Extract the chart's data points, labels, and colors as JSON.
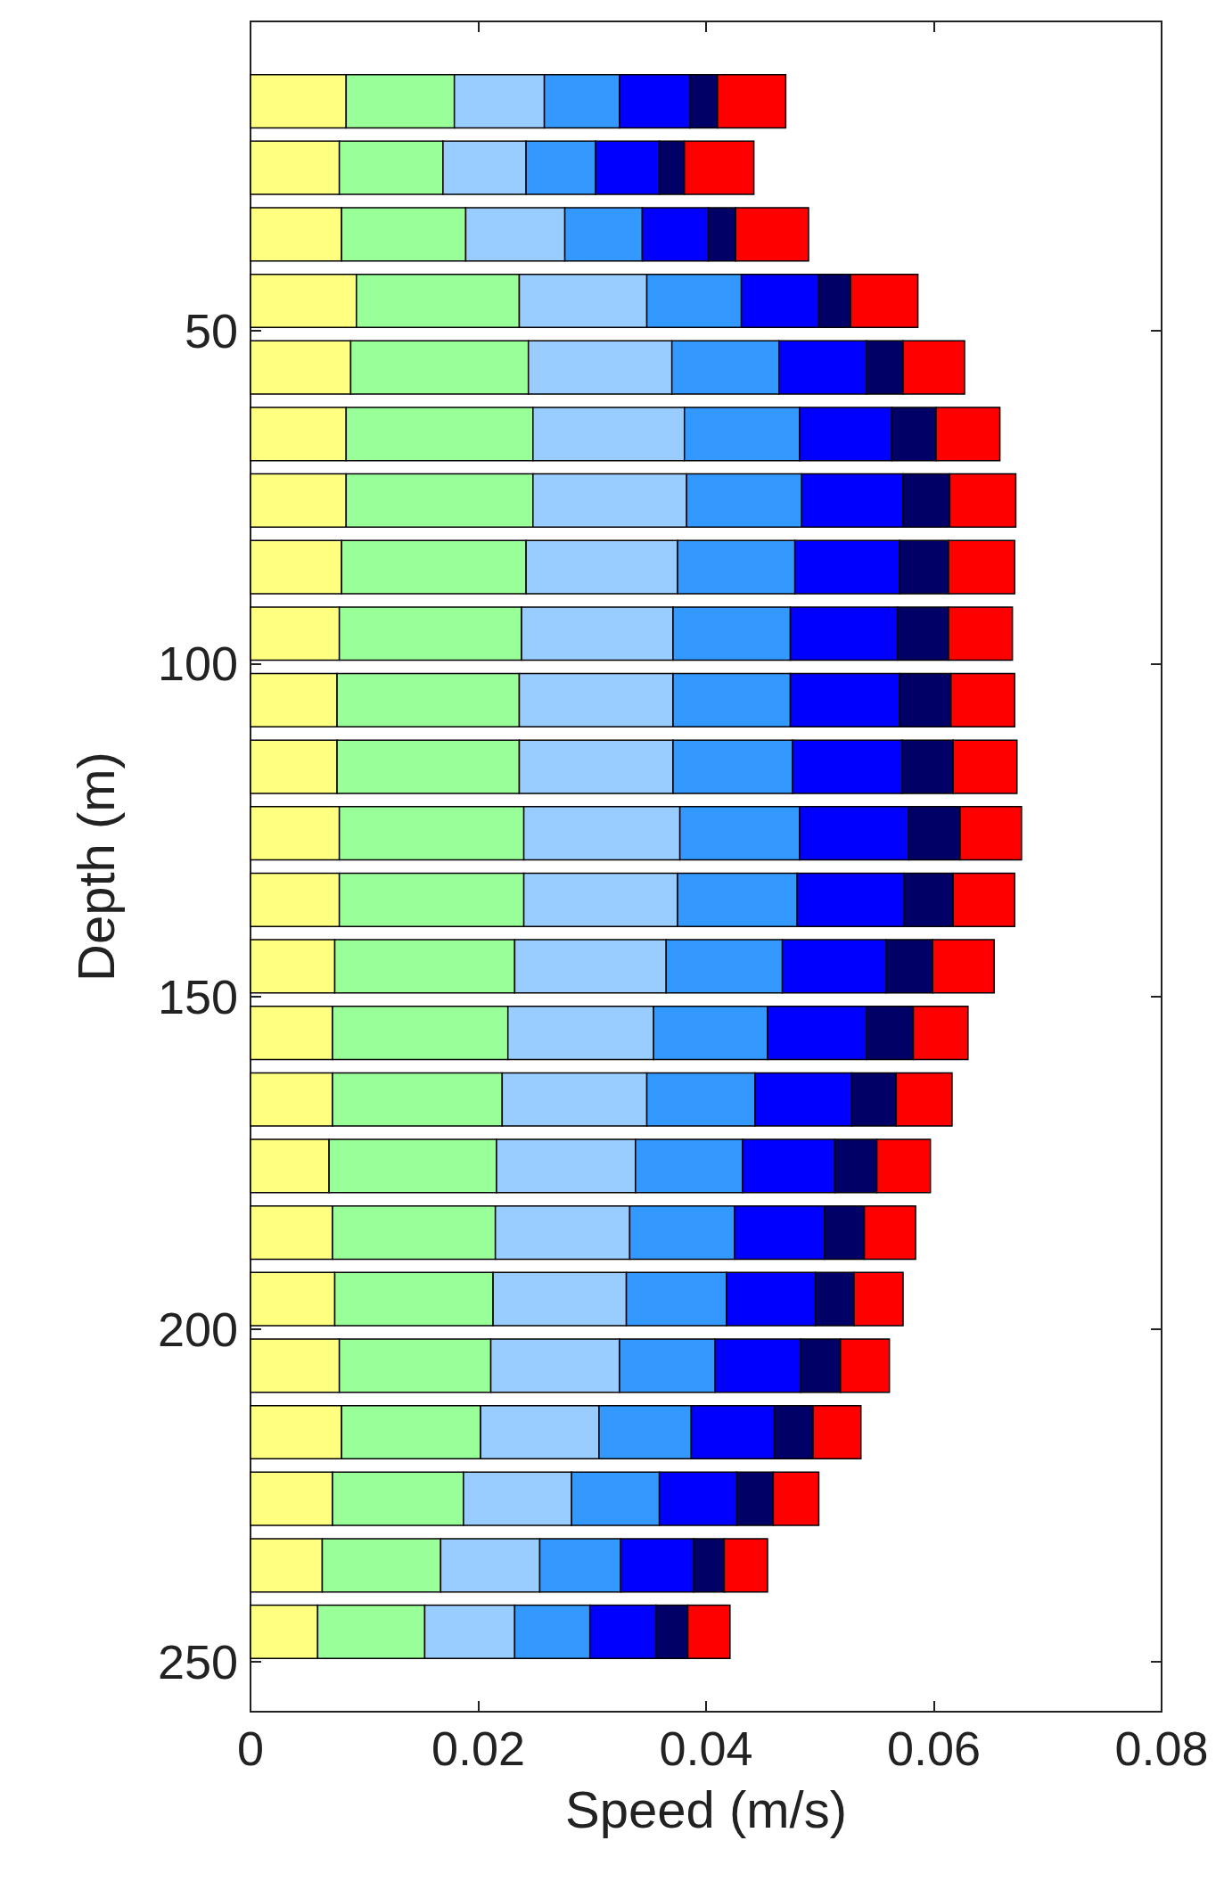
{
  "chart_data": {
    "type": "bar",
    "orientation": "horizontal",
    "stacked": true,
    "xlabel": "Speed (m/s)",
    "ylabel": "Depth (m)",
    "x": [
      15.5,
      25.5,
      35.5,
      45.5,
      55.5,
      65.5,
      75.5,
      85.5,
      95.5,
      105.5,
      115.5,
      125.5,
      135.5,
      145.5,
      155.5,
      165.5,
      175.5,
      185.5,
      195.5,
      205.5,
      215.5,
      225.5,
      235.5,
      245.5
    ],
    "xlim": [
      0,
      0.08
    ],
    "xticks": [
      0,
      0.02,
      0.04,
      0.06,
      0.08
    ],
    "ylim": [
      257.5,
      3.5
    ],
    "yticks": [
      50,
      100,
      150,
      200,
      250
    ],
    "grid": false,
    "series": [
      {
        "color": "#ffff80",
        "values": [
          0.0084,
          0.0078,
          0.008,
          0.0093,
          0.0088,
          0.0084,
          0.0084,
          0.008,
          0.0078,
          0.0076,
          0.0076,
          0.0078,
          0.0078,
          0.0074,
          0.0072,
          0.0072,
          0.0069,
          0.0072,
          0.0074,
          0.0078,
          0.008,
          0.0072,
          0.0063,
          0.0059
        ]
      },
      {
        "color": "#99ff99",
        "values": [
          0.0095,
          0.0091,
          0.0109,
          0.0143,
          0.0156,
          0.0164,
          0.0164,
          0.0162,
          0.016,
          0.016,
          0.016,
          0.0162,
          0.0162,
          0.0158,
          0.0154,
          0.0149,
          0.0147,
          0.0143,
          0.0139,
          0.0133,
          0.0122,
          0.0115,
          0.0104,
          0.0094
        ]
      },
      {
        "color": "#99ccff",
        "values": [
          0.0079,
          0.0073,
          0.0087,
          0.0112,
          0.0126,
          0.0133,
          0.0135,
          0.0133,
          0.0133,
          0.0135,
          0.0135,
          0.0137,
          0.0135,
          0.0133,
          0.0128,
          0.0127,
          0.0122,
          0.0118,
          0.0117,
          0.0113,
          0.0104,
          0.0095,
          0.0087,
          0.0079
        ]
      },
      {
        "color": "#3399ff",
        "values": [
          0.0066,
          0.0061,
          0.0068,
          0.0083,
          0.0094,
          0.0101,
          0.0101,
          0.0103,
          0.0103,
          0.0103,
          0.0105,
          0.0105,
          0.0105,
          0.0102,
          0.01,
          0.0095,
          0.0094,
          0.0092,
          0.0088,
          0.0084,
          0.0081,
          0.0077,
          0.0071,
          0.0066
        ]
      },
      {
        "color": "#0000ff",
        "values": [
          0.0062,
          0.0056,
          0.0058,
          0.0068,
          0.0077,
          0.0081,
          0.0089,
          0.0092,
          0.0094,
          0.0096,
          0.0096,
          0.0096,
          0.0094,
          0.0091,
          0.0087,
          0.0085,
          0.0081,
          0.0079,
          0.0078,
          0.0075,
          0.0073,
          0.0068,
          0.0064,
          0.0058
        ]
      },
      {
        "color": "#000066",
        "values": [
          0.0024,
          0.0022,
          0.0024,
          0.0028,
          0.0032,
          0.0039,
          0.0041,
          0.0043,
          0.0045,
          0.0045,
          0.0045,
          0.0045,
          0.0043,
          0.0041,
          0.0041,
          0.0039,
          0.0037,
          0.0035,
          0.0034,
          0.0035,
          0.0034,
          0.0032,
          0.0027,
          0.0028
        ]
      },
      {
        "color": "#ff0000",
        "values": [
          0.006,
          0.0061,
          0.0064,
          0.0059,
          0.0054,
          0.0056,
          0.0058,
          0.0058,
          0.0056,
          0.0056,
          0.0056,
          0.0054,
          0.0054,
          0.0054,
          0.0048,
          0.0049,
          0.0047,
          0.0045,
          0.0043,
          0.0043,
          0.0042,
          0.004,
          0.0038,
          0.0037
        ]
      }
    ]
  }
}
